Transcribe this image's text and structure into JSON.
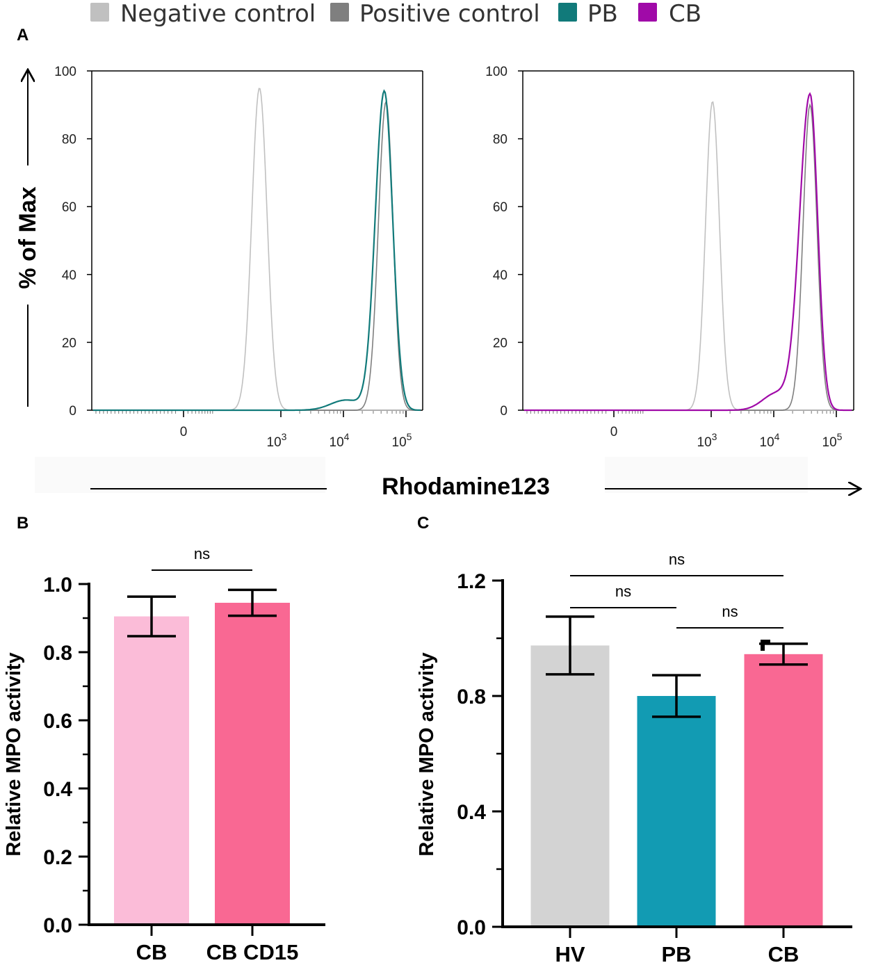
{
  "legend": [
    {
      "label": "Negative control",
      "color": "#c0c0c0"
    },
    {
      "label": "Positive control",
      "color": "#7f7f7f"
    },
    {
      "label": "PB",
      "color": "#117a7a"
    },
    {
      "label": "CB",
      "color": "#a00aa8"
    }
  ],
  "panel_letters": {
    "a": "A",
    "b": "B",
    "c": "C"
  },
  "histogram_shared": {
    "ylabel": "% of Max",
    "xlabel": "Rhodamine123",
    "yticks": [
      "0",
      "20",
      "40",
      "60",
      "80",
      "100"
    ],
    "xtick_zero": "0",
    "xtick_base": "10",
    "xtick_exps": [
      "3",
      "4",
      "5"
    ]
  },
  "chart_data": [
    {
      "type": "line",
      "panel": "A-left",
      "title": "",
      "xlabel": "Rhodamine123",
      "ylabel": "% of Max",
      "ylim": [
        0,
        100
      ],
      "xscale": "biexponential",
      "series": [
        {
          "name": "Negative control",
          "color": "#c0c0c0",
          "peak_x": 780,
          "peak_y": 95
        },
        {
          "name": "Positive control",
          "color": "#7f7f7f",
          "peak_x": 48000,
          "peak_y": 91
        },
        {
          "name": "PB",
          "color": "#117a7a",
          "peak_x": 45000,
          "peak_y": 94
        }
      ]
    },
    {
      "type": "line",
      "panel": "A-right",
      "title": "",
      "xlabel": "Rhodamine123",
      "ylabel": "% of Max",
      "ylim": [
        0,
        100
      ],
      "xscale": "biexponential",
      "series": [
        {
          "name": "Negative control",
          "color": "#c0c0c0",
          "peak_x": 1050,
          "peak_y": 91
        },
        {
          "name": "Positive control",
          "color": "#7f7f7f",
          "peak_x": 38000,
          "peak_y": 90
        },
        {
          "name": "CB",
          "color": "#a00aa8",
          "peak_x": 38000,
          "peak_y": 93
        }
      ]
    },
    {
      "type": "bar",
      "panel": "B",
      "ylabel": "Relative MPO activity",
      "ylim": [
        0,
        1.0
      ],
      "yticks": [
        "0.0",
        "0.2",
        "0.4",
        "0.6",
        "0.8",
        "1.0"
      ],
      "categories": [
        "CB",
        "CB CD15"
      ],
      "values": [
        0.905,
        0.945
      ],
      "errors": [
        0.058,
        0.038
      ],
      "colors": [
        "#fbbcd8",
        "#f96893"
      ],
      "comparisons": [
        {
          "from": 0,
          "to": 1,
          "label": "ns"
        }
      ]
    },
    {
      "type": "bar",
      "panel": "C",
      "ylabel": "Relative MPO activity",
      "ylim": [
        0,
        1.2
      ],
      "yticks": [
        "0.0",
        "0.4",
        "0.8",
        "1.2"
      ],
      "categories": [
        "HV",
        "PB",
        "CB"
      ],
      "values": [
        0.975,
        0.8,
        0.945
      ],
      "errors": [
        0.1,
        0.072,
        0.036
      ],
      "colors": [
        "#d3d3d3",
        "#129bb3",
        "#f96893"
      ],
      "comparisons": [
        {
          "from": 0,
          "to": 2,
          "label": "ns"
        },
        {
          "from": 0,
          "to": 1,
          "label": "ns"
        },
        {
          "from": 1,
          "to": 2,
          "label": "ns"
        }
      ]
    }
  ]
}
